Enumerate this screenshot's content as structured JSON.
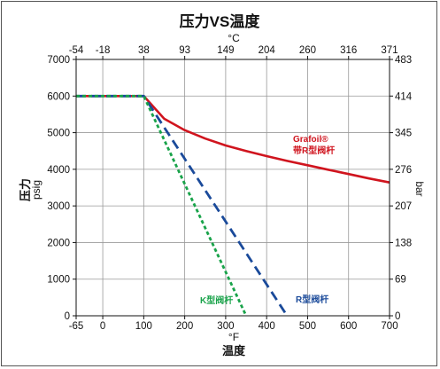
{
  "chart_data": {
    "type": "line",
    "title": "压力VS温度",
    "x_bottom": {
      "unit": "°F",
      "label": "温度",
      "ticks": [
        -65,
        0,
        100,
        200,
        300,
        400,
        500,
        600,
        700
      ],
      "range": [
        -65,
        700
      ]
    },
    "x_top": {
      "unit": "°C",
      "ticks": [
        -54,
        -18,
        38,
        93,
        149,
        204,
        260,
        316,
        371
      ]
    },
    "y_left": {
      "label": "压力",
      "unit": "psig",
      "ticks": [
        0,
        1000,
        2000,
        3000,
        4000,
        5000,
        6000,
        7000
      ],
      "range": [
        0,
        7000
      ]
    },
    "y_right": {
      "unit": "bar",
      "ticks": [
        0,
        69,
        138,
        207,
        276,
        345,
        414,
        483
      ]
    },
    "grid": true,
    "series": [
      {
        "name": "Grafoil® 带R型阀杆",
        "label_line1": "Grafoil®",
        "label_line2": "带R型阀杆",
        "color": "#d0141e",
        "style": "solid",
        "x": [
          -65,
          100,
          150,
          200,
          250,
          300,
          350,
          400,
          450,
          500,
          550,
          600,
          650,
          700
        ],
        "y": [
          6000,
          6000,
          5380,
          5070,
          4840,
          4650,
          4500,
          4360,
          4230,
          4110,
          3990,
          3870,
          3750,
          3640
        ]
      },
      {
        "name": "R型阀杆",
        "color": "#1a4a9a",
        "style": "dashed",
        "x": [
          -65,
          100,
          450
        ],
        "y": [
          6000,
          6000,
          0
        ]
      },
      {
        "name": "K型阀杆",
        "color": "#19a34a",
        "style": "dotted",
        "x": [
          -65,
          100,
          350
        ],
        "y": [
          6000,
          6000,
          0
        ]
      }
    ]
  }
}
